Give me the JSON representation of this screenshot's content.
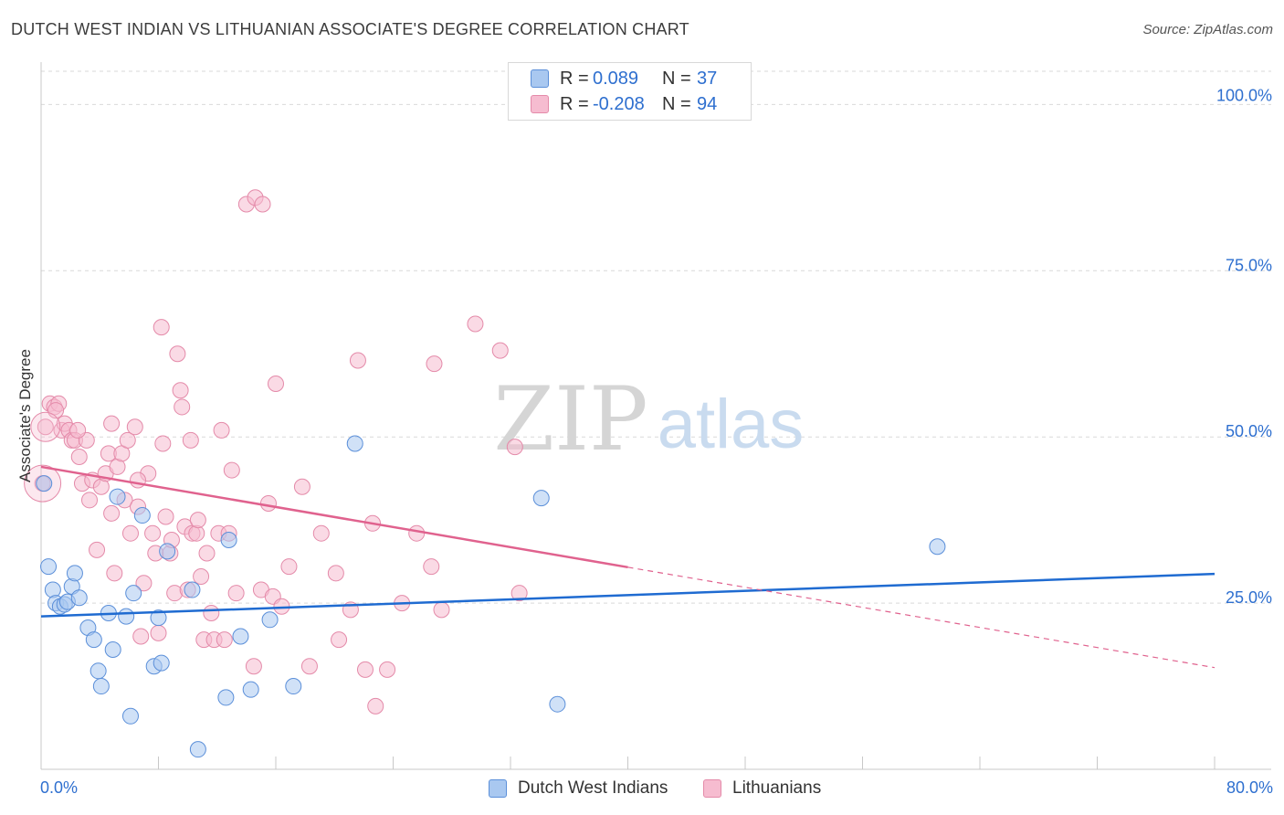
{
  "title": "DUTCH WEST INDIAN VS LITHUANIAN ASSOCIATE'S DEGREE CORRELATION CHART",
  "source": "Source: ZipAtlas.com",
  "watermark": {
    "zip": "ZIP",
    "atlas": "atlas"
  },
  "legend": {
    "r_label": "R =",
    "n_label": "N =",
    "rows": [
      {
        "r": "0.089",
        "n": "37"
      },
      {
        "r": "-0.208",
        "n": "94"
      }
    ]
  },
  "colors": {
    "blue_fill": "#a9c8f0",
    "blue_stroke": "#5b8fd9",
    "blue_line": "#1f6bd1",
    "pink_fill": "#f6bcd0",
    "pink_stroke": "#e48aa9",
    "pink_line": "#e0628e",
    "axis_text": "#2e6fcf",
    "grid": "#d9d9d9"
  },
  "chart_data": {
    "type": "scatter",
    "title": "DUTCH WEST INDIAN VS LITHUANIAN ASSOCIATE'S DEGREE CORRELATION CHART",
    "xlabel": "",
    "ylabel": "Associate's Degree",
    "xlim": [
      0,
      80
    ],
    "ylim": [
      0,
      105
    ],
    "x_tick_labels": [
      "0.0%",
      "80.0%"
    ],
    "y_ticks": [
      25,
      50,
      75,
      100
    ],
    "y_tick_labels": [
      "25.0%",
      "50.0%",
      "75.0%",
      "100.0%"
    ],
    "grid": true,
    "series": [
      {
        "name": "Dutch West Indians",
        "color": "blue",
        "r": 0.089,
        "n": 37,
        "trend": {
          "x0": 0,
          "y0": 23.0,
          "x1": 80,
          "y1": 29.4,
          "dashed_from": null
        },
        "points": [
          [
            0.2,
            43.0
          ],
          [
            0.5,
            30.5
          ],
          [
            0.8,
            27.0
          ],
          [
            1.0,
            25.0
          ],
          [
            1.3,
            24.5
          ],
          [
            1.6,
            24.8
          ],
          [
            1.8,
            25.2
          ],
          [
            2.1,
            27.5
          ],
          [
            2.3,
            29.5
          ],
          [
            2.6,
            25.8
          ],
          [
            3.2,
            21.3
          ],
          [
            3.6,
            19.5
          ],
          [
            3.9,
            14.8
          ],
          [
            4.1,
            12.5
          ],
          [
            4.6,
            23.5
          ],
          [
            4.9,
            18.0
          ],
          [
            5.2,
            41.0
          ],
          [
            5.8,
            23.0
          ],
          [
            6.1,
            8.0
          ],
          [
            6.3,
            26.5
          ],
          [
            6.9,
            38.2
          ],
          [
            7.7,
            15.5
          ],
          [
            8.0,
            22.8
          ],
          [
            8.2,
            16.0
          ],
          [
            8.6,
            32.8
          ],
          [
            10.3,
            27.0
          ],
          [
            10.7,
            3.0
          ],
          [
            12.6,
            10.8
          ],
          [
            12.8,
            34.5
          ],
          [
            13.6,
            20.0
          ],
          [
            14.3,
            12.0
          ],
          [
            15.6,
            22.5
          ],
          [
            17.2,
            12.5
          ],
          [
            21.4,
            49.0
          ],
          [
            34.1,
            40.8
          ],
          [
            35.2,
            9.8
          ],
          [
            61.1,
            33.5
          ]
        ]
      },
      {
        "name": "Lithuanians",
        "color": "pink",
        "r": -0.208,
        "n": 94,
        "trend": {
          "x0": 0,
          "y0": 45.5,
          "x1": 80,
          "y1": 15.3,
          "dashed_from": 40
        },
        "points": [
          [
            0.1,
            43.0
          ],
          [
            0.3,
            51.5
          ],
          [
            0.6,
            55.0
          ],
          [
            0.9,
            54.5
          ],
          [
            1.2,
            55.0
          ],
          [
            1.4,
            51.0
          ],
          [
            1.6,
            52.0
          ],
          [
            1.9,
            51.0
          ],
          [
            2.1,
            49.5
          ],
          [
            2.3,
            49.5
          ],
          [
            2.6,
            47.0
          ],
          [
            2.8,
            43.0
          ],
          [
            3.1,
            49.5
          ],
          [
            3.3,
            40.5
          ],
          [
            3.5,
            43.5
          ],
          [
            3.8,
            33.0
          ],
          [
            4.1,
            42.5
          ],
          [
            4.4,
            44.5
          ],
          [
            4.6,
            47.5
          ],
          [
            4.8,
            52.0
          ],
          [
            5.0,
            29.5
          ],
          [
            5.2,
            45.5
          ],
          [
            5.5,
            47.5
          ],
          [
            5.7,
            40.5
          ],
          [
            5.9,
            49.5
          ],
          [
            6.1,
            35.5
          ],
          [
            6.4,
            51.5
          ],
          [
            6.6,
            39.5
          ],
          [
            6.8,
            20.0
          ],
          [
            7.0,
            28.0
          ],
          [
            7.3,
            44.5
          ],
          [
            7.6,
            35.5
          ],
          [
            7.8,
            32.5
          ],
          [
            8.0,
            20.5
          ],
          [
            8.2,
            66.5
          ],
          [
            8.3,
            49.0
          ],
          [
            8.5,
            38.0
          ],
          [
            8.8,
            32.5
          ],
          [
            8.9,
            34.5
          ],
          [
            9.1,
            26.5
          ],
          [
            9.3,
            62.5
          ],
          [
            9.5,
            57.0
          ],
          [
            9.6,
            54.5
          ],
          [
            9.8,
            36.5
          ],
          [
            10.0,
            27.0
          ],
          [
            10.2,
            49.5
          ],
          [
            10.3,
            35.5
          ],
          [
            10.6,
            35.5
          ],
          [
            10.7,
            37.5
          ],
          [
            10.9,
            29.0
          ],
          [
            11.1,
            19.5
          ],
          [
            11.3,
            32.5
          ],
          [
            11.6,
            23.5
          ],
          [
            11.8,
            19.5
          ],
          [
            12.1,
            35.5
          ],
          [
            12.3,
            51.0
          ],
          [
            12.5,
            19.5
          ],
          [
            12.8,
            35.5
          ],
          [
            13.0,
            45.0
          ],
          [
            13.3,
            26.5
          ],
          [
            14.0,
            85.0
          ],
          [
            14.6,
            86.0
          ],
          [
            15.1,
            85.0
          ],
          [
            14.5,
            15.5
          ],
          [
            15.0,
            27.0
          ],
          [
            15.5,
            40.0
          ],
          [
            15.8,
            26.0
          ],
          [
            16.0,
            58.0
          ],
          [
            16.4,
            24.5
          ],
          [
            16.9,
            30.5
          ],
          [
            17.8,
            42.5
          ],
          [
            18.3,
            15.5
          ],
          [
            19.1,
            35.5
          ],
          [
            20.1,
            29.5
          ],
          [
            20.3,
            19.5
          ],
          [
            21.1,
            24.0
          ],
          [
            21.6,
            61.5
          ],
          [
            22.1,
            15.0
          ],
          [
            22.6,
            37.0
          ],
          [
            22.8,
            9.5
          ],
          [
            23.6,
            15.0
          ],
          [
            24.6,
            25.0
          ],
          [
            25.6,
            35.5
          ],
          [
            26.6,
            30.5
          ],
          [
            26.8,
            61.0
          ],
          [
            27.3,
            24.0
          ],
          [
            29.6,
            67.0
          ],
          [
            31.3,
            63.0
          ],
          [
            32.3,
            48.5
          ],
          [
            32.6,
            26.5
          ],
          [
            4.8,
            38.5
          ],
          [
            6.6,
            43.5
          ],
          [
            2.5,
            51.0
          ],
          [
            1.0,
            54.0
          ]
        ]
      }
    ]
  },
  "bottom_legend": [
    "Dutch West Indians",
    "Lithuanians"
  ]
}
